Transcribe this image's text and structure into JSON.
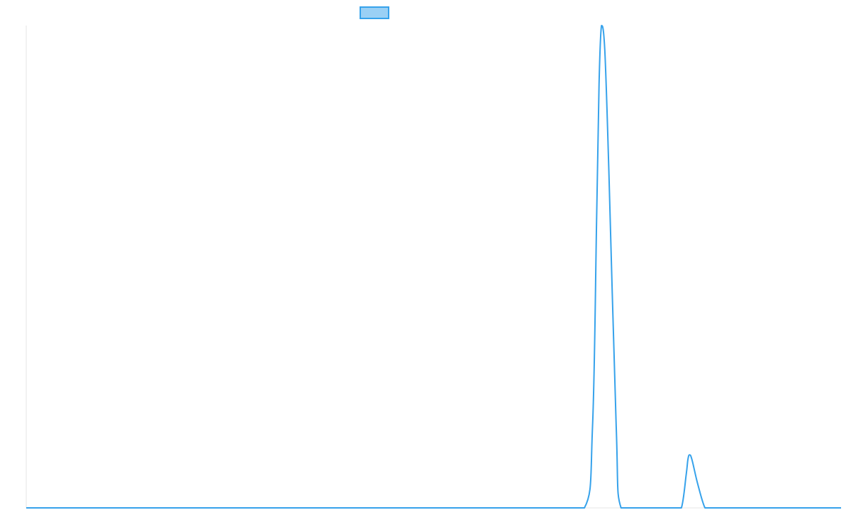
{
  "chart_data": {
    "type": "line",
    "title": "",
    "xlabel": "",
    "ylabel": "",
    "grid": false,
    "legend": {
      "placement": "top-center",
      "entries": [
        {
          "label": "",
          "fill": "#9ad0f5",
          "stroke": "#36a2eb"
        }
      ]
    },
    "xlim": [
      0,
      100
    ],
    "ylim": [
      0,
      100
    ],
    "series": [
      {
        "color": "#36a2eb",
        "x": [
          0,
          68.5,
          69.5,
          70.0,
          70.3,
          70.6,
          71.0,
          71.5,
          72.4,
          73.0,
          79.5,
          80.4,
          81.0,
          81.2,
          81.4,
          81.7,
          82.4,
          83.3,
          84.0,
          100
        ],
        "y": [
          0,
          0,
          17,
          60,
          88,
          100,
          95,
          70,
          17,
          0,
          0,
          0,
          7,
          10,
          11,
          10,
          5,
          0,
          0,
          0
        ]
      }
    ]
  }
}
